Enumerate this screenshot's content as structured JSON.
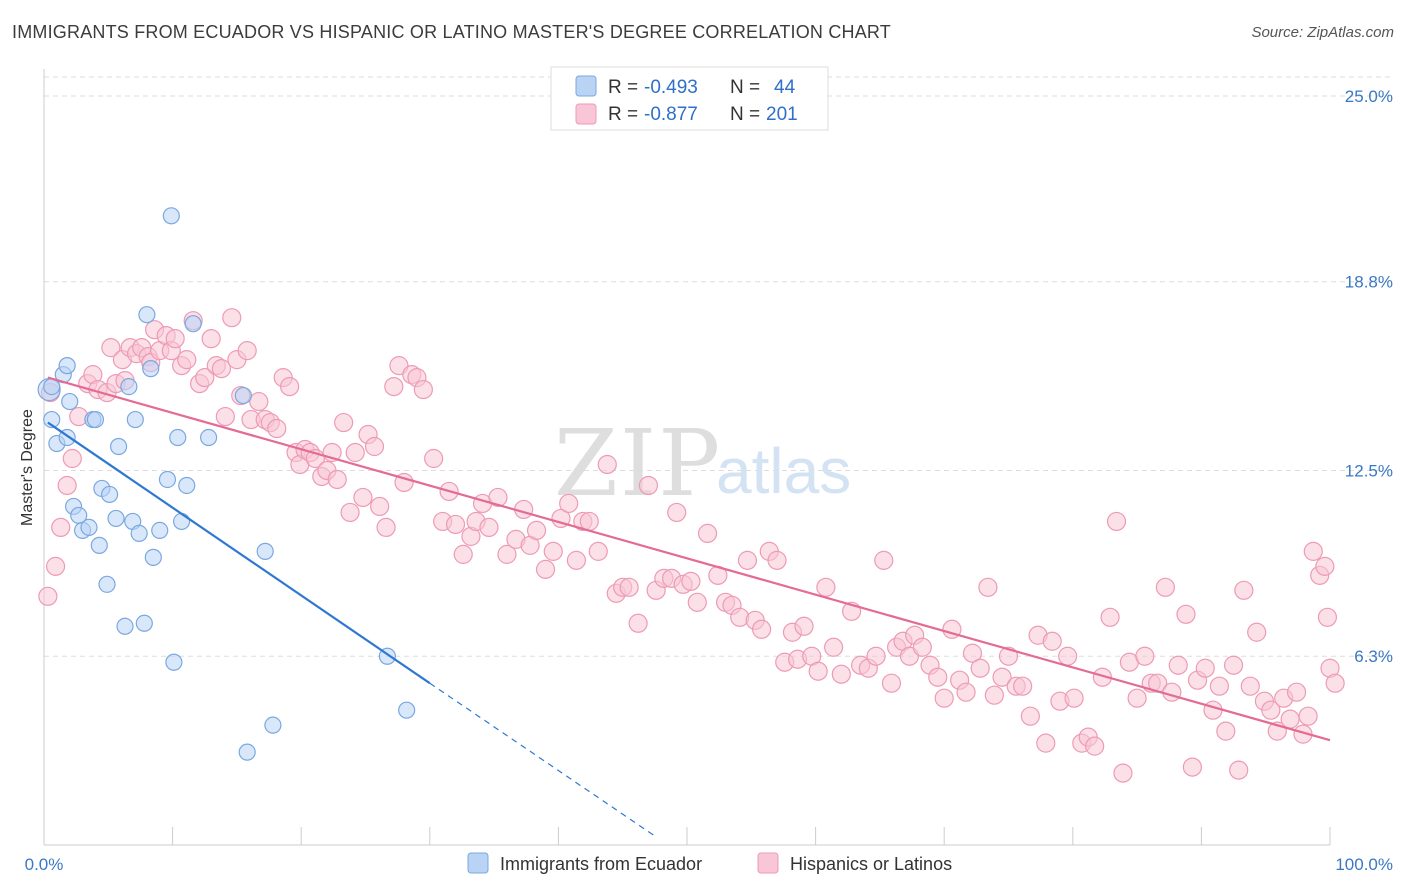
{
  "title": "IMMIGRANTS FROM ECUADOR VS HISPANIC OR LATINO MASTER'S DEGREE CORRELATION CHART",
  "source": "Source: ZipAtlas.com",
  "watermark": {
    "zip": "ZIP",
    "atlas": "atlas"
  },
  "colors": {
    "blue_fill": "#b9d3f5",
    "blue_stroke": "#7aa8e0",
    "blue_line": "#2e78d2",
    "pink_fill": "#f8c6d6",
    "pink_stroke": "#ee9ab6",
    "pink_line": "#e46b93",
    "tick_label": "#3a78c4",
    "grid": "#dddddd"
  },
  "legend": {
    "rows": [
      {
        "r_label": "R =",
        "r_value": "-0.493",
        "n_label": "N =",
        "n_value": "44"
      },
      {
        "r_label": "R =",
        "r_value": "-0.877",
        "n_label": "N =",
        "n_value": "201"
      }
    ]
  },
  "bottom_legend": [
    "Immigrants from Ecuador",
    "Hispanics or Latinos"
  ],
  "chart_data": {
    "type": "scatter",
    "title": "IMMIGRANTS FROM ECUADOR VS HISPANIC OR LATINO MASTER'S DEGREE CORRELATION CHART",
    "xlabel": "",
    "ylabel": "Master's Degree",
    "xlim": [
      0,
      100
    ],
    "ylim": [
      0,
      25.9
    ],
    "x_tick_labels": [
      "0.0%",
      "100.0%"
    ],
    "y_ticks": [
      6.3,
      12.5,
      18.8,
      25.0
    ],
    "y_tick_labels": [
      "6.3%",
      "12.5%",
      "18.8%",
      "25.0%"
    ],
    "grid": "horizontal dashed",
    "legend_position": "top-center",
    "series": [
      {
        "name": "Immigrants from Ecuador",
        "color": "#b9d3f5",
        "trend": {
          "x": [
            0.3,
            30.0
          ],
          "y": [
            14.1,
            5.4
          ],
          "dashed_to": [
            47.5,
            0.3
          ]
        },
        "points": [
          [
            0.4,
            15.2
          ],
          [
            0.6,
            15.3
          ],
          [
            0.6,
            14.2
          ],
          [
            1.0,
            13.4
          ],
          [
            1.5,
            15.7
          ],
          [
            1.8,
            16.0
          ],
          [
            1.8,
            13.6
          ],
          [
            2.0,
            14.8
          ],
          [
            2.3,
            11.3
          ],
          [
            2.7,
            11.0
          ],
          [
            3.0,
            10.5
          ],
          [
            3.5,
            10.6
          ],
          [
            3.8,
            14.2
          ],
          [
            4.0,
            14.2
          ],
          [
            4.3,
            10.0
          ],
          [
            4.5,
            11.9
          ],
          [
            4.9,
            8.7
          ],
          [
            5.1,
            11.7
          ],
          [
            5.6,
            10.9
          ],
          [
            5.8,
            13.3
          ],
          [
            6.3,
            7.3
          ],
          [
            6.6,
            15.3
          ],
          [
            6.9,
            10.8
          ],
          [
            7.1,
            14.2
          ],
          [
            7.4,
            10.4
          ],
          [
            7.8,
            7.4
          ],
          [
            8.0,
            17.7
          ],
          [
            8.3,
            15.9
          ],
          [
            8.5,
            9.6
          ],
          [
            9.0,
            10.5
          ],
          [
            9.6,
            12.2
          ],
          [
            9.9,
            21.0
          ],
          [
            10.1,
            6.1
          ],
          [
            10.4,
            13.6
          ],
          [
            10.7,
            10.8
          ],
          [
            11.1,
            12.0
          ],
          [
            11.6,
            17.4
          ],
          [
            12.8,
            13.6
          ],
          [
            15.5,
            15.0
          ],
          [
            15.8,
            3.1
          ],
          [
            17.2,
            9.8
          ],
          [
            17.8,
            4.0
          ],
          [
            26.7,
            6.3
          ],
          [
            28.2,
            4.5
          ]
        ]
      },
      {
        "name": "Hispanics or Latinos",
        "color": "#f8c6d6",
        "trend": {
          "x": [
            0.3,
            100.0
          ],
          "y": [
            15.6,
            3.5
          ]
        },
        "points": [
          [
            0.3,
            8.3
          ],
          [
            0.5,
            15.1
          ],
          [
            0.9,
            9.3
          ],
          [
            1.3,
            10.6
          ],
          [
            1.8,
            12.0
          ],
          [
            2.2,
            12.9
          ],
          [
            2.7,
            14.3
          ],
          [
            3.4,
            15.4
          ],
          [
            3.8,
            15.7
          ],
          [
            4.2,
            15.2
          ],
          [
            4.9,
            15.1
          ],
          [
            5.2,
            16.6
          ],
          [
            5.6,
            15.4
          ],
          [
            6.1,
            16.2
          ],
          [
            6.3,
            15.5
          ],
          [
            6.7,
            16.6
          ],
          [
            7.2,
            16.4
          ],
          [
            7.6,
            16.6
          ],
          [
            8.1,
            16.3
          ],
          [
            8.3,
            16.1
          ],
          [
            8.6,
            17.2
          ],
          [
            9.0,
            16.5
          ],
          [
            9.5,
            17.0
          ],
          [
            9.9,
            16.5
          ],
          [
            10.2,
            16.9
          ],
          [
            10.7,
            16.0
          ],
          [
            11.1,
            16.2
          ],
          [
            11.6,
            17.5
          ],
          [
            12.1,
            15.4
          ],
          [
            12.5,
            15.6
          ],
          [
            13.0,
            16.9
          ],
          [
            13.4,
            16.0
          ],
          [
            13.8,
            15.9
          ],
          [
            14.1,
            14.3
          ],
          [
            14.6,
            17.6
          ],
          [
            15.0,
            16.2
          ],
          [
            15.3,
            15.0
          ],
          [
            15.8,
            16.5
          ],
          [
            16.1,
            14.2
          ],
          [
            16.7,
            14.8
          ],
          [
            17.2,
            14.2
          ],
          [
            17.6,
            14.1
          ],
          [
            18.1,
            13.9
          ],
          [
            18.6,
            15.6
          ],
          [
            19.1,
            15.3
          ],
          [
            19.6,
            13.1
          ],
          [
            19.9,
            12.7
          ],
          [
            20.3,
            13.2
          ],
          [
            20.7,
            13.1
          ],
          [
            21.1,
            12.9
          ],
          [
            21.6,
            12.3
          ],
          [
            22.0,
            12.5
          ],
          [
            22.4,
            13.1
          ],
          [
            22.8,
            12.2
          ],
          [
            23.3,
            14.1
          ],
          [
            23.8,
            11.1
          ],
          [
            24.2,
            13.1
          ],
          [
            24.8,
            11.6
          ],
          [
            25.2,
            13.7
          ],
          [
            25.7,
            13.3
          ],
          [
            26.1,
            11.3
          ],
          [
            26.6,
            10.6
          ],
          [
            27.2,
            15.3
          ],
          [
            27.6,
            16.0
          ],
          [
            28.0,
            12.1
          ],
          [
            28.6,
            15.7
          ],
          [
            29.0,
            15.6
          ],
          [
            29.5,
            15.2
          ],
          [
            30.3,
            12.9
          ],
          [
            31.0,
            10.8
          ],
          [
            31.5,
            11.8
          ],
          [
            32.0,
            10.7
          ],
          [
            32.6,
            9.7
          ],
          [
            33.2,
            10.3
          ],
          [
            33.6,
            10.8
          ],
          [
            34.1,
            11.4
          ],
          [
            34.6,
            10.6
          ],
          [
            35.3,
            11.6
          ],
          [
            36.0,
            9.7
          ],
          [
            36.7,
            10.2
          ],
          [
            37.3,
            11.2
          ],
          [
            37.8,
            10.0
          ],
          [
            38.3,
            10.5
          ],
          [
            39.0,
            9.2
          ],
          [
            39.6,
            9.8
          ],
          [
            40.2,
            10.9
          ],
          [
            40.8,
            11.4
          ],
          [
            41.4,
            9.5
          ],
          [
            41.9,
            10.8
          ],
          [
            42.4,
            10.8
          ],
          [
            43.1,
            9.8
          ],
          [
            43.8,
            12.7
          ],
          [
            44.5,
            8.4
          ],
          [
            45.0,
            8.6
          ],
          [
            45.5,
            8.6
          ],
          [
            46.2,
            7.4
          ],
          [
            47.0,
            12.0
          ],
          [
            47.6,
            8.5
          ],
          [
            48.2,
            8.9
          ],
          [
            48.8,
            8.9
          ],
          [
            49.2,
            11.1
          ],
          [
            49.7,
            8.7
          ],
          [
            50.3,
            8.8
          ],
          [
            50.8,
            8.1
          ],
          [
            51.6,
            10.4
          ],
          [
            52.4,
            9.0
          ],
          [
            53.0,
            8.1
          ],
          [
            53.5,
            8.0
          ],
          [
            54.1,
            7.6
          ],
          [
            54.7,
            9.5
          ],
          [
            55.3,
            7.5
          ],
          [
            55.8,
            7.2
          ],
          [
            56.4,
            9.8
          ],
          [
            57.0,
            9.5
          ],
          [
            57.6,
            6.1
          ],
          [
            58.2,
            7.1
          ],
          [
            58.6,
            6.2
          ],
          [
            59.1,
            7.3
          ],
          [
            59.7,
            6.3
          ],
          [
            60.2,
            5.8
          ],
          [
            60.8,
            8.6
          ],
          [
            61.4,
            6.6
          ],
          [
            62.0,
            5.7
          ],
          [
            62.8,
            7.8
          ],
          [
            63.5,
            6.0
          ],
          [
            64.1,
            5.9
          ],
          [
            64.7,
            6.3
          ],
          [
            65.3,
            9.5
          ],
          [
            65.9,
            5.4
          ],
          [
            66.3,
            6.6
          ],
          [
            66.8,
            6.8
          ],
          [
            67.3,
            6.3
          ],
          [
            67.7,
            7.0
          ],
          [
            68.3,
            6.6
          ],
          [
            68.9,
            6.0
          ],
          [
            69.5,
            5.6
          ],
          [
            70.0,
            4.9
          ],
          [
            70.6,
            7.2
          ],
          [
            71.2,
            5.5
          ],
          [
            71.7,
            5.1
          ],
          [
            72.2,
            6.4
          ],
          [
            72.8,
            5.9
          ],
          [
            73.4,
            8.6
          ],
          [
            73.9,
            5.0
          ],
          [
            74.5,
            5.6
          ],
          [
            75.0,
            6.3
          ],
          [
            75.6,
            5.3
          ],
          [
            76.1,
            5.3
          ],
          [
            76.7,
            4.3
          ],
          [
            77.3,
            7.0
          ],
          [
            77.9,
            3.4
          ],
          [
            78.4,
            6.8
          ],
          [
            79.0,
            4.8
          ],
          [
            79.6,
            6.3
          ],
          [
            80.1,
            4.9
          ],
          [
            80.7,
            3.4
          ],
          [
            81.2,
            3.6
          ],
          [
            81.7,
            3.3
          ],
          [
            82.3,
            5.6
          ],
          [
            82.9,
            7.6
          ],
          [
            83.4,
            10.8
          ],
          [
            83.9,
            2.4
          ],
          [
            84.4,
            6.1
          ],
          [
            85.0,
            4.9
          ],
          [
            85.6,
            6.3
          ],
          [
            86.1,
            5.4
          ],
          [
            86.6,
            5.4
          ],
          [
            87.2,
            8.6
          ],
          [
            87.7,
            5.1
          ],
          [
            88.2,
            6.0
          ],
          [
            88.8,
            7.7
          ],
          [
            89.3,
            2.6
          ],
          [
            89.7,
            5.5
          ],
          [
            90.3,
            5.9
          ],
          [
            90.9,
            4.5
          ],
          [
            91.4,
            5.3
          ],
          [
            91.9,
            3.8
          ],
          [
            92.5,
            6.0
          ],
          [
            92.9,
            2.5
          ],
          [
            93.3,
            8.5
          ],
          [
            93.8,
            5.3
          ],
          [
            94.3,
            7.1
          ],
          [
            94.9,
            4.8
          ],
          [
            95.4,
            4.5
          ],
          [
            95.9,
            3.8
          ],
          [
            96.4,
            4.9
          ],
          [
            96.9,
            4.2
          ],
          [
            97.4,
            5.1
          ],
          [
            97.9,
            3.7
          ],
          [
            98.3,
            4.3
          ],
          [
            98.7,
            9.8
          ],
          [
            99.2,
            9.0
          ],
          [
            99.6,
            9.3
          ],
          [
            99.8,
            7.6
          ],
          [
            100.0,
            5.9
          ],
          [
            100.4,
            5.4
          ]
        ]
      }
    ]
  }
}
